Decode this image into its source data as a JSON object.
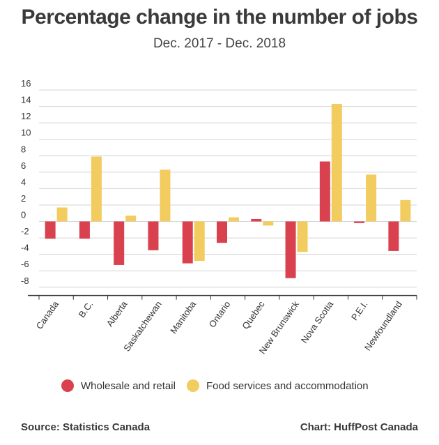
{
  "title": "Percentage change in the number of jobs",
  "subtitle": "Dec. 2017 - Dec. 2018",
  "colors": {
    "series1": "#d9414f",
    "series2": "#f3cc5f",
    "grid": "#d4d4d4",
    "axis": "#333333"
  },
  "chart_data": {
    "type": "bar",
    "categories": [
      "Canada",
      "B.C.",
      "Alberta",
      "Saskatchewan",
      "Manitoba",
      "Ontario",
      "Quebec",
      "New Brunswick",
      "Nova Scotia",
      "P.E.I.",
      "Newfoundland"
    ],
    "series": [
      {
        "name": "Wholesale and retail",
        "values": [
          -2.1,
          -2.1,
          -5.3,
          -3.5,
          -5.1,
          -2.6,
          0.3,
          -6.9,
          7.3,
          -0.2,
          -3.6
        ]
      },
      {
        "name": "Food services and accommodation",
        "values": [
          1.7,
          7.9,
          0.7,
          6.3,
          -4.8,
          0.5,
          -0.5,
          -3.7,
          14.3,
          5.7,
          2.6
        ]
      }
    ],
    "yticks": [
      16,
      14,
      12,
      10,
      8,
      6,
      4,
      2,
      0,
      -2,
      -4,
      -6,
      -8
    ],
    "ylim": [
      -8.5,
      16.5
    ],
    "grid": true,
    "legend_position": "bottom"
  },
  "legend": [
    {
      "label": "Wholesale and retail"
    },
    {
      "label": "Food services and accommodation"
    }
  ],
  "footer": {
    "source": "Source: Statistics Canada",
    "credit": "Chart: HuffPost Canada"
  }
}
